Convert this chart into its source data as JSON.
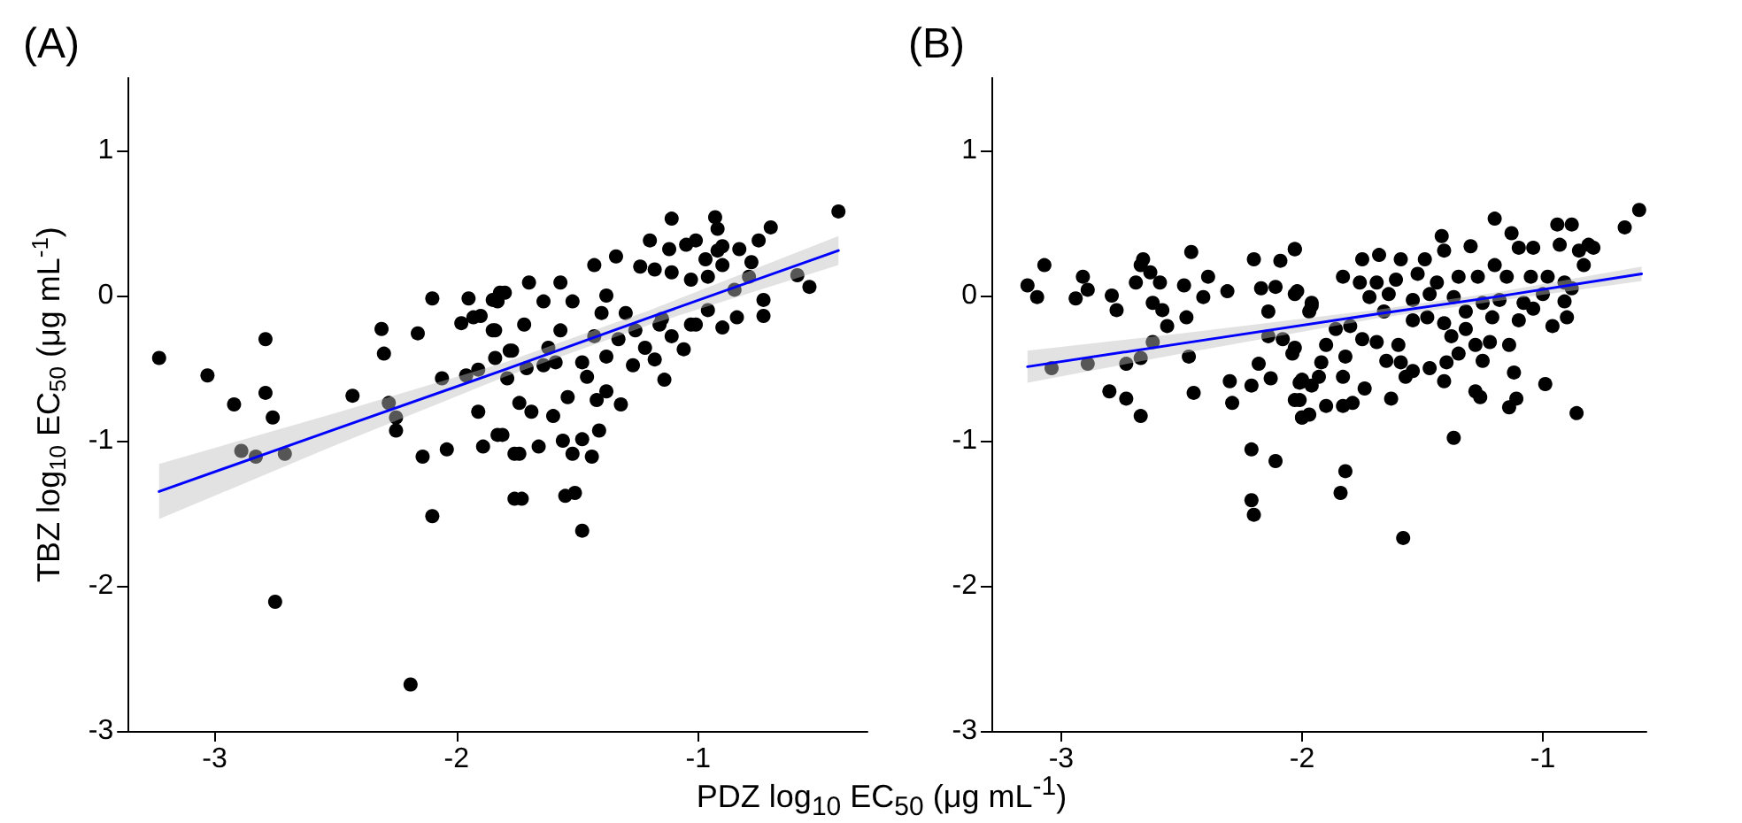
{
  "chart_data": [
    {
      "type": "scatter",
      "title": "(A)",
      "xlabel": "PDZ log$_{10}$ EC$_{50}$ (μg mL$^{-1}$)",
      "ylabel": "TBZ log$_{10}$ EC$_{50}$ (μg mL$^{-1}$)",
      "xlim": [
        -3.36,
        -0.3
      ],
      "ylim": [
        -3,
        1.5
      ],
      "xticks": [
        -3,
        -2,
        -1
      ],
      "yticks": [
        -3,
        -2,
        -1,
        0,
        1
      ],
      "grid": false,
      "series": [
        {
          "color": "#000000",
          "marker": "circle",
          "x": [
            -3.23,
            -3.03,
            -2.92,
            -2.79,
            -2.79,
            -2.76,
            -2.89,
            -2.83,
            -2.71,
            -2.75,
            -2.43,
            -2.31,
            -2.3,
            -2.28,
            -2.25,
            -2.25,
            -2.16,
            -2.1,
            -2.14,
            -2.1,
            -2.04,
            -2.19,
            -2.06,
            -1.96,
            -1.95,
            -1.98,
            -1.93,
            -1.9,
            -1.85,
            -1.85,
            -1.82,
            -1.91,
            -1.91,
            -1.89,
            -1.84,
            -1.83,
            -1.76,
            -1.76,
            -1.78,
            -1.79,
            -0.42,
            -1.11,
            -0.93,
            -0.92,
            -0.7,
            -1.2,
            -1.34,
            -1.12,
            -1.05,
            -1.01,
            -0.9,
            -0.83,
            -0.75,
            -1.43,
            -1.24,
            -1.18,
            -1.11,
            -1.03,
            -0.96,
            -0.9,
            -0.78,
            -0.59,
            -0.54,
            -0.73,
            -0.73,
            -0.84,
            -0.9,
            -1.01,
            -0.96,
            -1.16,
            -1.11,
            -1.06,
            -1.18,
            -1.14,
            -1.27,
            -1.33,
            -1.38,
            -1.32,
            -1.38,
            -1.42,
            -1.48,
            -1.46,
            -1.43,
            -1.52,
            -1.57,
            -1.64,
            -1.7,
            -1.8,
            -1.83,
            -1.84,
            -1.72,
            -1.77,
            -1.71,
            -1.74,
            -1.69,
            -1.6,
            -1.54,
            -1.81,
            -1.74,
            -1.66,
            -1.56,
            -1.52,
            -1.48,
            -1.44,
            -1.41,
            -1.73,
            -1.55,
            -1.51,
            -1.48,
            -1.59,
            -1.3,
            -1.26,
            -1.38,
            -1.22,
            -1.15,
            -1.03,
            -0.85,
            -0.79,
            -0.97,
            -0.92,
            -1.62,
            -1.4,
            -1.64,
            -1.57
          ],
          "values": [
            -0.43,
            -0.55,
            -0.75,
            -0.3,
            -0.67,
            -0.84,
            -1.07,
            -1.11,
            -1.09,
            -2.11,
            -0.69,
            -0.23,
            -0.4,
            -0.74,
            -0.84,
            -0.93,
            -0.26,
            -0.02,
            -1.11,
            -1.52,
            -1.06,
            -2.68,
            -0.57,
            -0.55,
            -0.02,
            -0.19,
            -0.15,
            -0.14,
            -0.24,
            -0.03,
            0.02,
            -0.8,
            -0.51,
            -1.04,
            -0.43,
            -0.96,
            -1.09,
            -1.4,
            -0.38,
            -0.57,
            0.58,
            0.53,
            0.54,
            0.46,
            0.47,
            0.38,
            0.27,
            0.32,
            0.35,
            0.38,
            0.34,
            0.32,
            0.38,
            0.21,
            0.2,
            0.18,
            0.16,
            0.11,
            0.13,
            0.21,
            0.23,
            0.14,
            0.06,
            -0.03,
            -0.14,
            -0.15,
            -0.22,
            -0.2,
            -0.1,
            -0.2,
            -0.28,
            -0.37,
            -0.44,
            -0.58,
            -0.48,
            -0.3,
            -0.42,
            -0.75,
            -0.66,
            -0.72,
            -0.46,
            -0.56,
            -0.28,
            -0.04,
            0.09,
            -0.04,
            0.09,
            0.02,
            -0.04,
            -0.24,
            -0.2,
            -0.38,
            -0.5,
            -0.74,
            -0.8,
            -0.83,
            -0.7,
            -0.96,
            -1.09,
            -1.04,
            -1.0,
            -1.09,
            -0.99,
            -1.11,
            -0.93,
            -1.4,
            -1.38,
            -1.36,
            -1.62,
            -0.46,
            -0.12,
            -0.24,
            0.0,
            -0.36,
            -0.16,
            -0.2,
            0.04,
            0.13,
            0.25,
            0.31,
            -0.36,
            -0.12,
            -0.48,
            -0.24
          ]
        },
        {
          "type": "line",
          "color": "#0000ff",
          "x": [
            -3.23,
            -2.5,
            -1.8,
            -1.2,
            -0.42
          ],
          "values": [
            -1.35,
            -0.92,
            -0.51,
            -0.15,
            0.31
          ],
          "lower": [
            -1.54,
            -1.03,
            -0.56,
            -0.2,
            0.21
          ],
          "upper": [
            -1.16,
            -0.81,
            -0.46,
            -0.1,
            0.41
          ]
        }
      ]
    },
    {
      "type": "scatter",
      "title": "(B)",
      "xlim": [
        -3.29,
        -0.57
      ],
      "ylim": [
        -3,
        1.5
      ],
      "xticks": [
        -3,
        -2,
        -1
      ],
      "yticks": [
        -3,
        -2,
        -1,
        0,
        1
      ],
      "grid": false,
      "series": [
        {
          "color": "#000000",
          "marker": "circle",
          "x": [
            -3.14,
            -3.1,
            -3.07,
            -3.04,
            -2.94,
            -2.91,
            -2.89,
            -2.89,
            -2.8,
            -2.79,
            -2.77,
            -2.73,
            -2.73,
            -2.69,
            -2.67,
            -2.67,
            -2.66,
            -2.63,
            -2.59,
            -2.62,
            -2.58,
            -2.67,
            -2.62,
            -2.56,
            -2.49,
            -2.48,
            -2.46,
            -2.47,
            -2.45,
            -2.41,
            -2.39,
            -2.31,
            -2.3,
            -2.29,
            -2.21,
            -2.2,
            -2.21,
            -2.2,
            -2.21,
            -2.18,
            -2.17,
            -2.14,
            -2.14,
            -2.13,
            -2.11,
            -2.11,
            -2.09,
            -2.03,
            -2.08,
            -2.04,
            -2.03,
            -2.03,
            -2.01,
            -2.0,
            -1.97,
            -1.96,
            -1.97,
            -1.93,
            -0.6,
            -0.66,
            -0.88,
            -0.94,
            -1.2,
            -1.13,
            -1.42,
            -0.81,
            -0.79,
            -0.85,
            -0.93,
            -1.04,
            -1.1,
            -1.3,
            -1.41,
            -1.49,
            -1.59,
            -1.68,
            -1.75,
            -2.03,
            -1.83,
            -1.76,
            -1.69,
            -1.61,
            -1.52,
            -1.44,
            -1.35,
            -1.27,
            -1.2,
            -1.15,
            -1.05,
            -0.98,
            -0.91,
            -0.83,
            -1.72,
            -1.64,
            -1.54,
            -1.47,
            -1.37,
            -1.25,
            -1.18,
            -1.08,
            -1.0,
            -0.91,
            -0.88,
            -2.02,
            -1.96,
            -1.66,
            -1.54,
            -1.48,
            -1.41,
            -1.32,
            -1.21,
            -1.1,
            -1.04,
            -0.96,
            -0.9,
            -1.86,
            -1.8,
            -1.75,
            -1.69,
            -1.6,
            -1.38,
            -1.32,
            -1.28,
            -1.22,
            -1.14,
            -2.03,
            -1.9,
            -1.82,
            -1.65,
            -1.59,
            -1.47,
            -1.4,
            -1.35,
            -1.25,
            -1.92,
            -1.83,
            -1.74,
            -1.57,
            -1.54,
            -1.41,
            -1.28,
            -1.26,
            -1.12,
            -0.99,
            -2.0,
            -1.96,
            -2.01,
            -1.9,
            -1.83,
            -1.79,
            -1.63,
            -2.0,
            -1.14,
            -1.11,
            -0.86,
            -1.37,
            -1.82,
            -1.84,
            -1.58
          ],
          "values": [
            0.07,
            -0.01,
            0.21,
            -0.5,
            -0.02,
            0.13,
            0.04,
            -0.47,
            -0.66,
            0.0,
            -0.1,
            -0.71,
            -0.47,
            0.09,
            -0.83,
            0.21,
            0.25,
            0.16,
            0.09,
            -0.05,
            -0.1,
            -0.43,
            -0.32,
            -0.21,
            0.07,
            -0.15,
            0.3,
            -0.42,
            -0.67,
            -0.01,
            0.13,
            0.03,
            -0.59,
            -0.74,
            -1.06,
            0.25,
            -1.41,
            -1.51,
            -0.62,
            -0.47,
            0.05,
            -0.11,
            -0.28,
            -0.57,
            -1.14,
            0.06,
            0.24,
            0.32,
            -0.3,
            -0.4,
            -0.72,
            0.01,
            -0.6,
            -0.84,
            -0.11,
            -0.05,
            -0.82,
            -0.56,
            0.59,
            0.47,
            0.49,
            0.49,
            0.53,
            0.43,
            0.41,
            0.35,
            0.33,
            0.31,
            0.35,
            0.33,
            0.33,
            0.34,
            0.31,
            0.25,
            0.25,
            0.28,
            0.25,
            0.32,
            0.13,
            0.09,
            0.09,
            0.11,
            0.15,
            0.09,
            0.13,
            0.13,
            0.21,
            0.13,
            0.13,
            0.13,
            0.09,
            0.21,
            -0.01,
            0.01,
            -0.03,
            0.01,
            -0.01,
            -0.05,
            -0.03,
            -0.05,
            0.01,
            -0.04,
            0.05,
            0.03,
            -0.07,
            -0.11,
            -0.17,
            -0.15,
            -0.19,
            -0.11,
            -0.15,
            -0.17,
            -0.09,
            -0.21,
            -0.15,
            -0.23,
            -0.21,
            -0.3,
            -0.32,
            -0.34,
            -0.28,
            -0.23,
            -0.34,
            -0.32,
            -0.34,
            -0.36,
            -0.34,
            -0.42,
            -0.45,
            -0.46,
            -0.5,
            -0.46,
            -0.4,
            -0.45,
            -0.46,
            -0.56,
            -0.64,
            -0.56,
            -0.52,
            -0.59,
            -0.66,
            -0.7,
            -0.53,
            -0.61,
            -0.58,
            -0.62,
            -0.72,
            -0.76,
            -0.76,
            -0.74,
            -0.71,
            -0.84,
            -0.77,
            -0.71,
            -0.81,
            -0.98,
            -1.21,
            -1.36,
            -1.67
          ]
        },
        {
          "type": "line",
          "color": "#0000ff",
          "x": [
            -3.14,
            -2.5,
            -1.7,
            -1.2,
            -0.59
          ],
          "values": [
            -0.49,
            -0.33,
            -0.13,
            -0.01,
            0.15
          ],
          "lower": [
            -0.6,
            -0.4,
            -0.16,
            -0.04,
            0.1
          ],
          "upper": [
            -0.38,
            -0.26,
            -0.1,
            0.02,
            0.2
          ]
        }
      ]
    }
  ]
}
